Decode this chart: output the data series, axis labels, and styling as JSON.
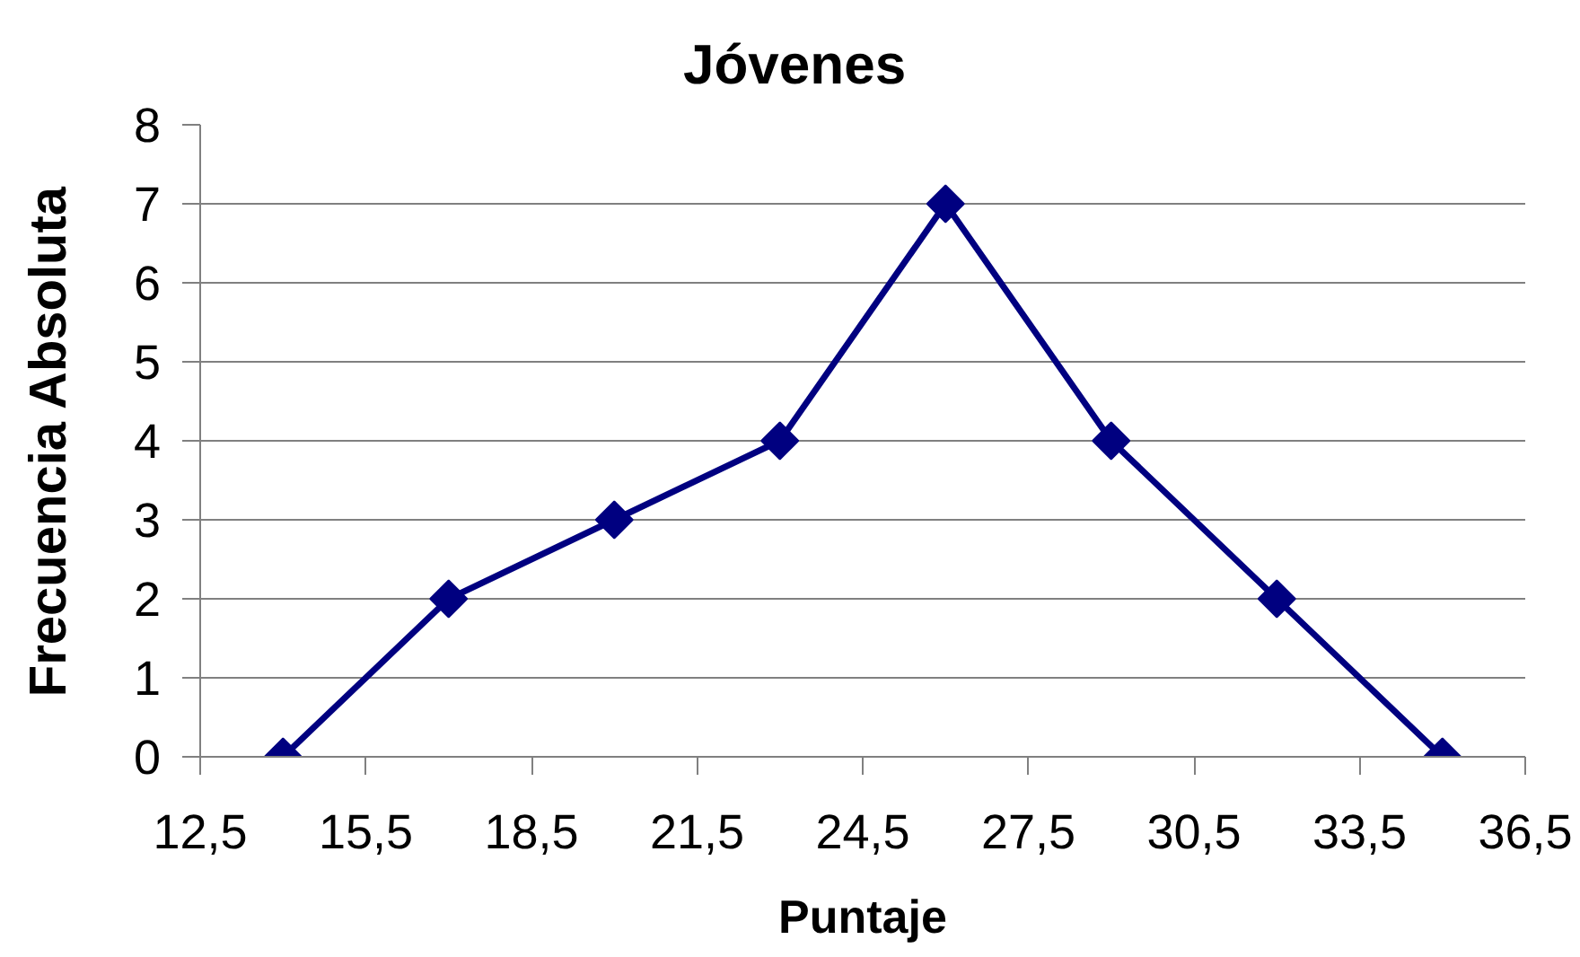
{
  "chart_data": {
    "type": "line",
    "title": "Jóvenes",
    "xlabel": "Puntaje",
    "ylabel": "Frecuencia Absoluta",
    "x": [
      14,
      17,
      20,
      23,
      26,
      29,
      32,
      35
    ],
    "series": [
      {
        "color": "#000080",
        "values": [
          0,
          2,
          3,
          4,
          7,
          4,
          2,
          0
        ]
      }
    ],
    "xlim": [
      12.5,
      36.5
    ],
    "xticks": [
      {
        "value": 12.5,
        "label": "12,5"
      },
      {
        "value": 15.5,
        "label": "15,5"
      },
      {
        "value": 18.5,
        "label": "18,5"
      },
      {
        "value": 21.5,
        "label": "21,5"
      },
      {
        "value": 24.5,
        "label": "24,5"
      },
      {
        "value": 27.5,
        "label": "27,5"
      },
      {
        "value": 30.5,
        "label": "30,5"
      },
      {
        "value": 33.5,
        "label": "33,5"
      },
      {
        "value": 36.5,
        "label": "36,5"
      }
    ],
    "ylim": [
      0,
      8
    ],
    "yticks": [
      0,
      1,
      2,
      3,
      4,
      5,
      6,
      7,
      8
    ],
    "grid": "y",
    "marker": "diamond",
    "line_style": "solid"
  }
}
